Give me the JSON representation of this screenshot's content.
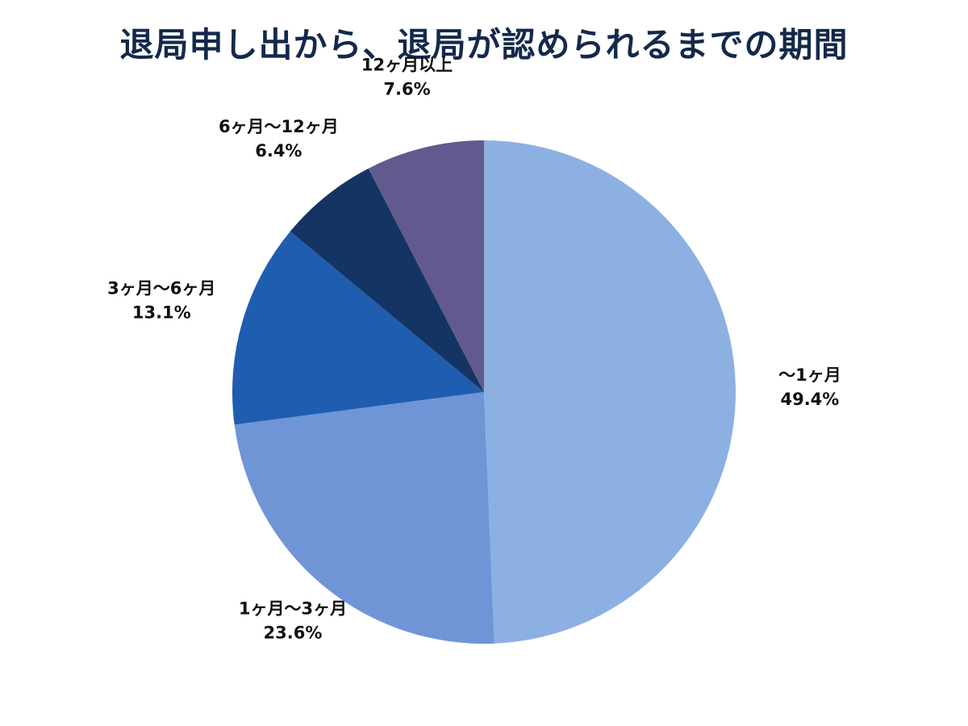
{
  "chart_data": {
    "type": "pie",
    "title": "退局申し出から、退局が認められるまでの期間",
    "legend": "none",
    "slices": [
      {
        "name": "〜1ヶ月",
        "value": 49.4,
        "value_label": "49.4%",
        "color": "#8db0e3"
      },
      {
        "name": "1ヶ月〜3ヶ月",
        "value": 23.6,
        "value_label": "23.6%",
        "color": "#6f95d7"
      },
      {
        "name": "3ヶ月〜6ヶ月",
        "value": 13.1,
        "value_label": "13.1%",
        "color": "#1f5db1"
      },
      {
        "name": "6ヶ月〜12ヶ月",
        "value": 6.4,
        "value_label": "6.4%",
        "color": "#143463"
      },
      {
        "name": "12ヶ月以上",
        "value": 7.6,
        "value_label": "7.6%",
        "color": "#625a8f"
      }
    ]
  }
}
